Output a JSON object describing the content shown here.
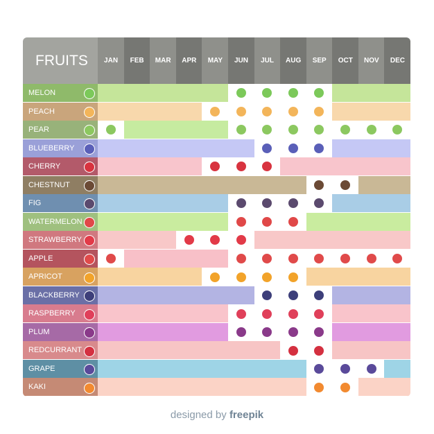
{
  "header": {
    "title": "FRUITS",
    "color": "#a3a49f",
    "months": [
      "JAN",
      "FEB",
      "MAR",
      "APR",
      "MAY",
      "JUN",
      "JUL",
      "AUG",
      "SEP",
      "OCT",
      "NOV",
      "DEC"
    ],
    "month_colors": [
      "#8f908b",
      "#767773"
    ]
  },
  "table": {
    "in_season_color": "#ffffff",
    "rows": [
      {
        "name": "MELON",
        "label_color": "#8fba6a",
        "cell_color": "#c5e59a",
        "fruit_color": "#7cc95a",
        "season": [
          0,
          0,
          0,
          0,
          0,
          1,
          1,
          1,
          1,
          0,
          0,
          0
        ]
      },
      {
        "name": "PEACH",
        "label_color": "#c9a57c",
        "cell_color": "#f8d8ac",
        "fruit_color": "#f3b55a",
        "season": [
          0,
          0,
          0,
          0,
          1,
          1,
          1,
          1,
          1,
          0,
          0,
          0
        ]
      },
      {
        "name": "PEAR",
        "label_color": "#98b27a",
        "cell_color": "#c6eba0",
        "fruit_color": "#8cc860",
        "season": [
          1,
          0,
          0,
          0,
          0,
          1,
          1,
          1,
          1,
          1,
          1,
          1
        ]
      },
      {
        "name": "BLUEBERRY",
        "label_color": "#9aa0d8",
        "cell_color": "#c5c8f5",
        "fruit_color": "#5a5fb8",
        "season": [
          0,
          0,
          0,
          0,
          0,
          0,
          1,
          1,
          1,
          0,
          0,
          0
        ]
      },
      {
        "name": "CHERRY",
        "label_color": "#b35a6a",
        "cell_color": "#f8c5cc",
        "fruit_color": "#d8333f",
        "season": [
          0,
          0,
          0,
          0,
          1,
          1,
          1,
          0,
          0,
          0,
          0,
          0
        ]
      },
      {
        "name": "CHESTNUT",
        "label_color": "#8f7e63",
        "cell_color": "#c9b896",
        "fruit_color": "#6b4a35",
        "season": [
          0,
          0,
          0,
          0,
          0,
          0,
          0,
          0,
          1,
          1,
          0,
          0
        ]
      },
      {
        "name": "FIG",
        "label_color": "#6f8fb0",
        "cell_color": "#a9cde6",
        "fruit_color": "#5b4a6e",
        "season": [
          0,
          0,
          0,
          0,
          0,
          1,
          1,
          1,
          1,
          0,
          0,
          0
        ]
      },
      {
        "name": "WATERMELON",
        "label_color": "#9fc07f",
        "cell_color": "#c9ec9f",
        "fruit_color": "#e04848",
        "season": [
          0,
          0,
          0,
          0,
          0,
          1,
          1,
          1,
          0,
          0,
          0,
          0
        ]
      },
      {
        "name": "STRAWBERRY",
        "label_color": "#d0787f",
        "cell_color": "#f8c8c8",
        "fruit_color": "#e23a48",
        "season": [
          0,
          0,
          0,
          1,
          1,
          1,
          0,
          0,
          0,
          0,
          0,
          0
        ]
      },
      {
        "name": "APPLE",
        "label_color": "#b4545e",
        "cell_color": "#f8c0c8",
        "fruit_color": "#e04a4a",
        "season": [
          1,
          0,
          0,
          0,
          0,
          1,
          1,
          1,
          1,
          1,
          1,
          1
        ]
      },
      {
        "name": "APRICOT",
        "label_color": "#d8a260",
        "cell_color": "#f8d4a0",
        "fruit_color": "#f2a32a",
        "season": [
          0,
          0,
          0,
          0,
          1,
          1,
          1,
          1,
          0,
          0,
          0,
          0
        ]
      },
      {
        "name": "BLACKBERRY",
        "label_color": "#6a6fa6",
        "cell_color": "#b3b4e3",
        "fruit_color": "#3d3f7a",
        "season": [
          0,
          0,
          0,
          0,
          0,
          0,
          1,
          1,
          1,
          0,
          0,
          0
        ]
      },
      {
        "name": "RASPBERRY",
        "label_color": "#d87c8e",
        "cell_color": "#f9c4cb",
        "fruit_color": "#e0405a",
        "season": [
          0,
          0,
          0,
          0,
          0,
          1,
          1,
          1,
          1,
          0,
          0,
          0
        ]
      },
      {
        "name": "PLUM",
        "label_color": "#a66aa6",
        "cell_color": "#e19be0",
        "fruit_color": "#8a3a8a",
        "season": [
          0,
          0,
          0,
          0,
          0,
          1,
          1,
          1,
          1,
          0,
          0,
          0
        ]
      },
      {
        "name": "REDCURRANT",
        "label_color": "#d88a8c",
        "cell_color": "#f7c5c5",
        "fruit_color": "#d43040",
        "season": [
          0,
          0,
          0,
          0,
          0,
          0,
          0,
          1,
          1,
          0,
          0,
          0
        ]
      },
      {
        "name": "GRAPE",
        "label_color": "#5e8fa4",
        "cell_color": "#9ed4e6",
        "fruit_color": "#5a4a9a",
        "season": [
          0,
          0,
          0,
          0,
          0,
          0,
          0,
          0,
          1,
          1,
          1,
          0
        ]
      },
      {
        "name": "KAKI",
        "label_color": "#c58a75",
        "cell_color": "#fbd3c6",
        "fruit_color": "#f28a30",
        "season": [
          0,
          0,
          0,
          0,
          0,
          0,
          0,
          0,
          1,
          1,
          0,
          0
        ]
      }
    ]
  },
  "footer": {
    "prefix": "designed by",
    "brand": "freepik"
  }
}
